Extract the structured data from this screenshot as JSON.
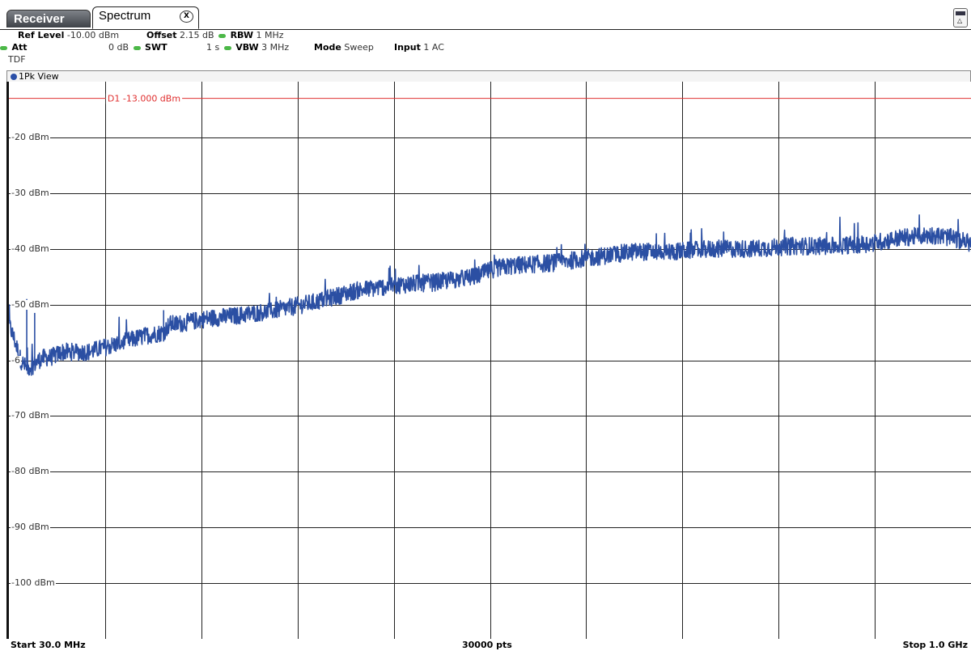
{
  "tabs": {
    "receiver": "Receiver",
    "spectrum": "Spectrum",
    "close_glyph": "X"
  },
  "settings": {
    "ref_level_label": "Ref Level",
    "ref_level_value": "-10.00 dBm",
    "offset_label": "Offset",
    "offset_value": "2.15 dB",
    "rbw_label": "RBW",
    "rbw_value": "1 MHz",
    "att_label": "Att",
    "att_value": "0 dB",
    "swt_label": "SWT",
    "swt_value": "1 s",
    "vbw_label": "VBW",
    "vbw_value": "3 MHz",
    "mode_label": "Mode",
    "mode_value": "Sweep",
    "input_label": "Input",
    "input_value": "1 AC",
    "tdf": "TDF"
  },
  "view": {
    "label": "1Pk View",
    "dot_color": "#2a4fa8"
  },
  "display_line": {
    "label": "D1 -13.000 dBm",
    "value_dbm": -13,
    "color": "#e03030"
  },
  "y_axis_labels": [
    "-20 dBm",
    "-30 dBm",
    "-40 dBm",
    "-50 dBm",
    "-6",
    "-70 dBm",
    "-80 dBm",
    "-90 dBm",
    "-100 dBm"
  ],
  "footer": {
    "start": "Start 30.0 MHz",
    "points": "30000 pts",
    "stop": "Stop 1.0 GHz"
  },
  "icons": {
    "corner": "display-layout-icon",
    "close": "close-icon"
  },
  "chart_data": {
    "type": "line",
    "ylim": [
      -110,
      -10
    ],
    "xlim_mhz": [
      30,
      1000
    ],
    "grid": true,
    "series": [
      {
        "color": "#2b4fa3",
        "x_mhz": [
          30,
          36,
          42,
          48,
          54,
          60,
          66,
          72,
          78,
          84,
          90,
          110,
          130,
          150,
          170,
          186,
          192,
          200,
          230,
          260,
          300,
          340,
          380,
          420,
          460,
          500,
          520,
          540,
          580,
          620,
          660,
          700,
          740,
          780,
          820,
          860,
          900,
          930,
          960,
          980,
          1000
        ],
        "y_dbm": [
          -53.5,
          -56.5,
          -60,
          -61.5,
          -61,
          -60,
          -59.5,
          -59.5,
          -59,
          -58.5,
          -58.5,
          -58.5,
          -57.5,
          -56.5,
          -55.5,
          -55,
          -53.5,
          -53.5,
          -52.5,
          -52,
          -51,
          -49.5,
          -47.5,
          -46.5,
          -46,
          -45,
          -43.5,
          -43,
          -42.5,
          -41.5,
          -40.5,
          -40.5,
          -40,
          -40,
          -39.5,
          -39.5,
          -39,
          -38,
          -37.5,
          -38,
          -39
        ]
      }
    ]
  }
}
